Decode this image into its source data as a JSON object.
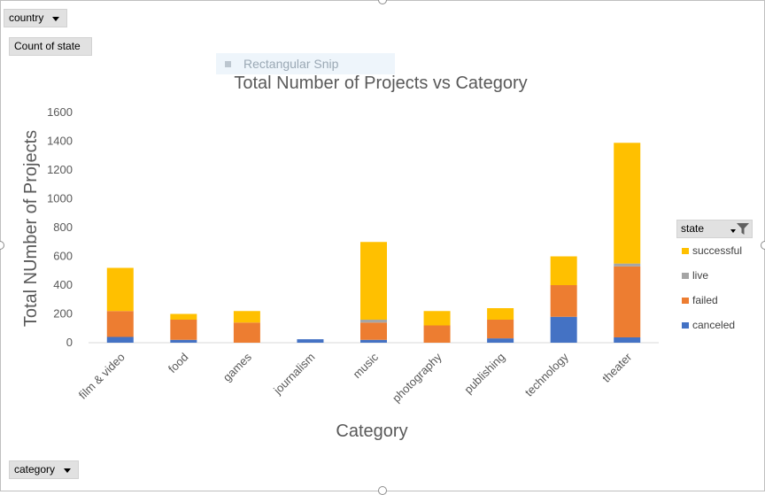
{
  "filters": {
    "country_label": "country",
    "value_field_label": "Count of state",
    "category_label": "category"
  },
  "overlay": {
    "snip_label": "Rectangular Snip"
  },
  "legend": {
    "header_label": "state",
    "items": [
      {
        "label": "successful",
        "color": "#ffc000"
      },
      {
        "label": "live",
        "color": "#a5a5a5"
      },
      {
        "label": "failed",
        "color": "#ed7d31"
      },
      {
        "label": "canceled",
        "color": "#4472c4"
      }
    ]
  },
  "chart_data": {
    "type": "bar",
    "stacked": true,
    "title": "Total Number of Projects vs Category",
    "xlabel": "Category",
    "ylabel": "Total NUmber of Projects",
    "ylim": [
      0,
      1600
    ],
    "yticks": [
      0,
      200,
      400,
      600,
      800,
      1000,
      1200,
      1400,
      1600
    ],
    "grid": false,
    "legend_position": "right",
    "categories": [
      "film & video",
      "food",
      "games",
      "journalism",
      "music",
      "photography",
      "publishing",
      "technology",
      "theater"
    ],
    "series": [
      {
        "name": "canceled",
        "color": "#4472c4",
        "values": [
          40,
          20,
          0,
          24,
          20,
          0,
          30,
          180,
          37
        ]
      },
      {
        "name": "failed",
        "color": "#ed7d31",
        "values": [
          180,
          140,
          140,
          0,
          120,
          120,
          130,
          220,
          493
        ]
      },
      {
        "name": "live",
        "color": "#a5a5a5",
        "values": [
          0,
          0,
          0,
          0,
          20,
          0,
          0,
          0,
          20
        ]
      },
      {
        "name": "successful",
        "color": "#ffc000",
        "values": [
          300,
          40,
          80,
          0,
          540,
          100,
          80,
          200,
          839
        ]
      }
    ]
  }
}
